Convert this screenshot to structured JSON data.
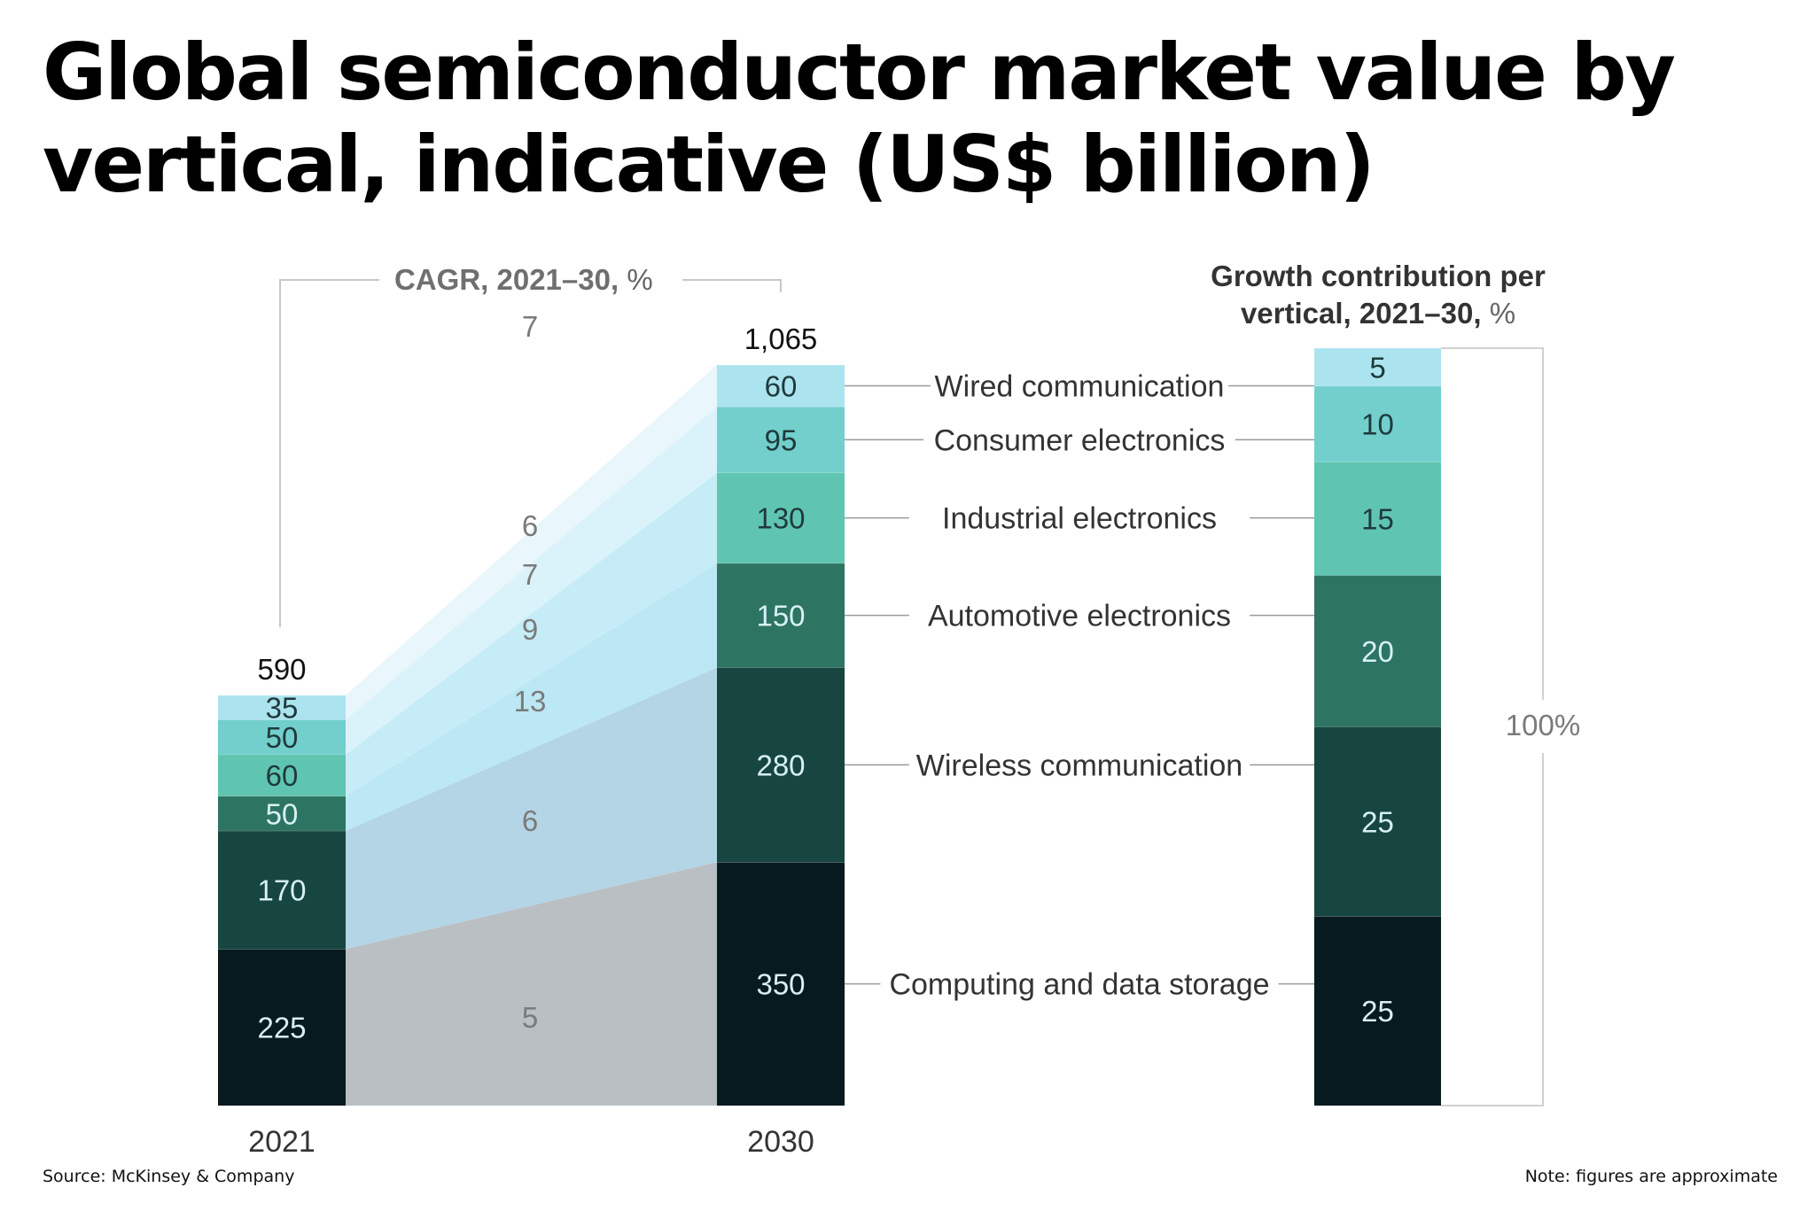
{
  "title": "Global semiconductor market value by vertical, indicative (US$ billion)",
  "cagr_header": "CAGR, 2021–30,",
  "cagr_header_unit": "%",
  "growth_header_line1": "Growth contribution per",
  "growth_header_line2": "vertical, 2021–30,",
  "growth_header_unit": "%",
  "growth_total_label": "100%",
  "source": "Source: McKinsey & Company",
  "note": "Note: figures are approximate",
  "colors": {
    "computing": "#071a20",
    "wireless": "#174540",
    "automotive": "#2e7462",
    "industrial": "#5fc5b1",
    "consumer": "#72cfcc",
    "wired": "#abe4ef"
  },
  "chart_data": {
    "type": "bar",
    "subtype": "stacked",
    "categories": [
      "2021",
      "2030"
    ],
    "totals": [
      "590",
      "1,065"
    ],
    "total_values": [
      590,
      1065
    ],
    "series": [
      {
        "key": "computing",
        "name": "Computing and data storage",
        "values": [
          225,
          350
        ],
        "cagr": "5",
        "growth_contribution": 25
      },
      {
        "key": "wireless",
        "name": "Wireless communication",
        "values": [
          170,
          280
        ],
        "cagr": "6",
        "growth_contribution": 25
      },
      {
        "key": "automotive",
        "name": "Automotive electronics",
        "values": [
          50,
          150
        ],
        "cagr": "13",
        "growth_contribution": 20
      },
      {
        "key": "industrial",
        "name": "Industrial electronics",
        "values": [
          60,
          130
        ],
        "cagr": "9",
        "growth_contribution": 15
      },
      {
        "key": "consumer",
        "name": "Consumer electronics",
        "values": [
          50,
          95
        ],
        "cagr": "7",
        "growth_contribution": 10
      },
      {
        "key": "wired",
        "name": "Wired communication",
        "values": [
          35,
          60
        ],
        "cagr": "6",
        "growth_contribution": 5
      }
    ],
    "overall_cagr": "7",
    "ylabel": "US$ billion"
  }
}
